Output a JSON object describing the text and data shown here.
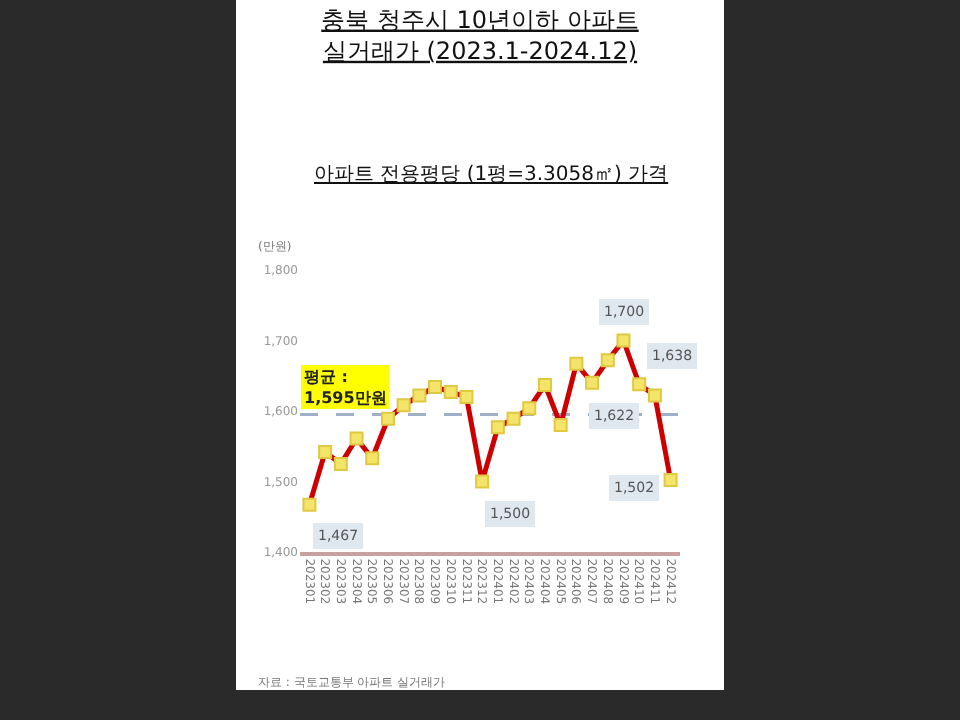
{
  "chart_data": {
    "type": "line",
    "title": "충북 청주시 10년이하 아파트\n실거래가 (2023.1-2024.12)",
    "subtitle": "아파트 전용평당 (1평=3.3058㎡) 가격",
    "ylabel": "(만원)",
    "categories": [
      "202301",
      "202302",
      "202303",
      "202304",
      "202305",
      "202306",
      "202307",
      "202308",
      "202309",
      "202310",
      "202311",
      "202312",
      "202401",
      "202402",
      "202403",
      "202404",
      "202405",
      "202406",
      "202407",
      "202408",
      "202409",
      "202410",
      "202411",
      "202412"
    ],
    "series": [
      {
        "color": "#cc0000",
        "values": [
          1467,
          1542,
          1525,
          1561,
          1533,
          1589,
          1608,
          1622,
          1634,
          1627,
          1620,
          1500,
          1577,
          1589,
          1604,
          1637,
          1580,
          1667,
          1640,
          1672,
          1700,
          1638,
          1622,
          1502
        ],
        "value_labels": [
          "1,467",
          null,
          null,
          null,
          null,
          null,
          null,
          null,
          null,
          null,
          null,
          "1,500",
          null,
          null,
          null,
          null,
          null,
          null,
          null,
          null,
          "1,700",
          "1,638",
          "1,622",
          "1,502"
        ]
      }
    ],
    "ylim": [
      1400,
      1800
    ],
    "yticks": [
      {
        "value": 1400,
        "label": "1,400"
      },
      {
        "value": 1500,
        "label": "1,500"
      },
      {
        "value": 1600,
        "label": "1,600"
      },
      {
        "value": 1700,
        "label": "1,700"
      },
      {
        "value": 1800,
        "label": "1,800"
      }
    ],
    "grid": false,
    "marker": "square",
    "line_style": "solid",
    "ref_lines": [
      {
        "axis": "y",
        "value": 1595,
        "label": "평균 : 1,595만원",
        "color": "#9fb0c8",
        "line_style": "dashed"
      }
    ],
    "annotations": [
      "자료 : 국토교통부 아파트 실거래가"
    ]
  }
}
